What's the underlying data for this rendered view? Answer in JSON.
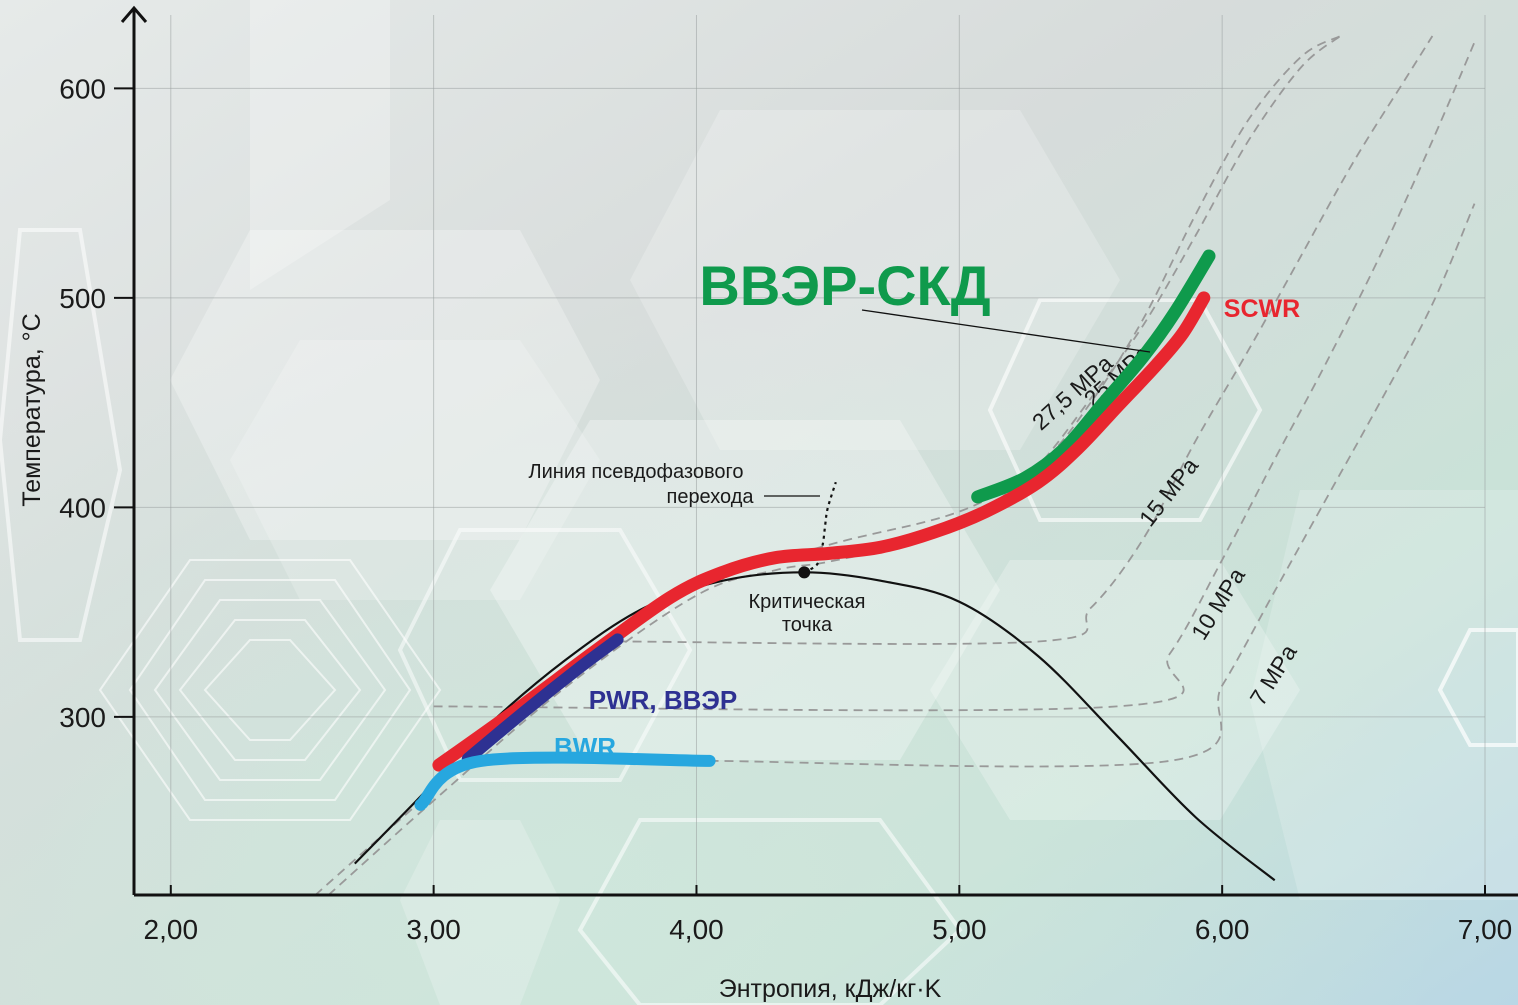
{
  "chart_data": {
    "type": "line",
    "xlabel": "Энтропия, кДж/кг·K",
    "ylabel": "Температура, °C",
    "xlim": [
      1.86,
      7.0
    ],
    "ylim": [
      215,
      635
    ],
    "x_ticks": [
      {
        "value": 2.0,
        "label": "2,00"
      },
      {
        "value": 3.0,
        "label": "3,00"
      },
      {
        "value": 4.0,
        "label": "4,00"
      },
      {
        "value": 5.0,
        "label": "5,00"
      },
      {
        "value": 6.0,
        "label": "6,00"
      },
      {
        "value": 7.0,
        "label": "7,00"
      }
    ],
    "y_ticks": [
      {
        "value": 300,
        "label": "300"
      },
      {
        "value": 400,
        "label": "400"
      },
      {
        "value": 500,
        "label": "500"
      },
      {
        "value": 600,
        "label": "600"
      }
    ],
    "grid": true,
    "series": [
      {
        "name": "ВВЭР-СКД",
        "color": "#0f9a4c",
        "x": [
          5.07,
          5.25,
          5.4,
          5.55,
          5.7,
          5.82,
          5.95
        ],
        "y": [
          405,
          414,
          428,
          450,
          472,
          493,
          520
        ]
      },
      {
        "name": "SCWR",
        "color": "#e8262f",
        "x": [
          3.02,
          3.3,
          3.6,
          3.9,
          4.1,
          4.3,
          4.5,
          4.7,
          4.9,
          5.1,
          5.3,
          5.45,
          5.6,
          5.75,
          5.85,
          5.93
        ],
        "y": [
          277,
          302,
          330,
          357,
          369,
          376,
          378,
          381,
          388,
          398,
          412,
          428,
          448,
          468,
          483,
          500
        ]
      },
      {
        "name": "PWR, ВВЭР",
        "color": "#2e3192",
        "x": [
          3.13,
          3.35,
          3.55,
          3.7
        ],
        "y": [
          280,
          303,
          323,
          337
        ]
      },
      {
        "name": "BWR",
        "color": "#27a7df",
        "x": [
          2.95,
          3.18,
          4.05
        ],
        "y": [
          258,
          279,
          279
        ]
      }
    ],
    "saturation_dome": {
      "x": [
        2.7,
        2.95,
        3.2,
        3.5,
        3.8,
        4.1,
        4.41,
        4.7,
        5.0,
        5.3,
        5.6,
        5.9,
        6.2
      ],
      "y": [
        230,
        262,
        295,
        327,
        352,
        365,
        369,
        365,
        355,
        329,
        291,
        252,
        222
      ]
    },
    "critical_point": {
      "x": 4.41,
      "y": 369,
      "label_lines": [
        "Критическая",
        "точка"
      ]
    },
    "pseudophase_line": {
      "label_lines": [
        "Линия псевдофазового",
        "перехода"
      ],
      "x": [
        4.41,
        4.46,
        4.48,
        4.49,
        4.5,
        4.53
      ],
      "y": [
        369,
        373,
        382,
        392,
        400,
        412
      ]
    },
    "isobars": [
      {
        "label": "27,5 MPa",
        "color": "#999999",
        "x": [
          2.55,
          3.0,
          3.5,
          4.0,
          4.5,
          5.0,
          5.3,
          5.5,
          5.7,
          5.9,
          6.1,
          6.3,
          6.45
        ],
        "y": [
          215,
          265,
          318,
          362,
          382,
          398,
          420,
          450,
          490,
          540,
          585,
          615,
          625
        ]
      },
      {
        "label": "25 MPa",
        "color": "#999999",
        "x": [
          2.6,
          3.0,
          3.5,
          4.0,
          4.3,
          4.5,
          4.8,
          5.1,
          5.3,
          5.5,
          5.7,
          5.9,
          6.1,
          6.3,
          6.45
        ],
        "y": [
          215,
          260,
          314,
          358,
          370,
          374,
          383,
          400,
          420,
          452,
          487,
          530,
          575,
          610,
          625
        ]
      },
      {
        "label": "15 MPa",
        "color": "#999999",
        "x": [
          3.7,
          5.3,
          5.5,
          5.7,
          5.9,
          6.1,
          6.3,
          6.5,
          6.7,
          6.8
        ],
        "y": [
          336,
          336,
          352,
          385,
          432,
          475,
          520,
          565,
          605,
          625
        ]
      },
      {
        "label": "10 MPa",
        "color": "#999999",
        "x": [
          3.0,
          5.6,
          5.8,
          6.0,
          6.2,
          6.4,
          6.6,
          6.8,
          6.96
        ],
        "y": [
          305,
          305,
          330,
          375,
          423,
          470,
          520,
          575,
          622
        ]
      },
      {
        "label": "7 MPa",
        "color": "#999999",
        "x": [
          4.05,
          5.8,
          6.0,
          6.2,
          6.4,
          6.6,
          6.8,
          6.96
        ],
        "y": [
          279,
          279,
          315,
          360,
          405,
          450,
          497,
          545
        ]
      }
    ]
  }
}
